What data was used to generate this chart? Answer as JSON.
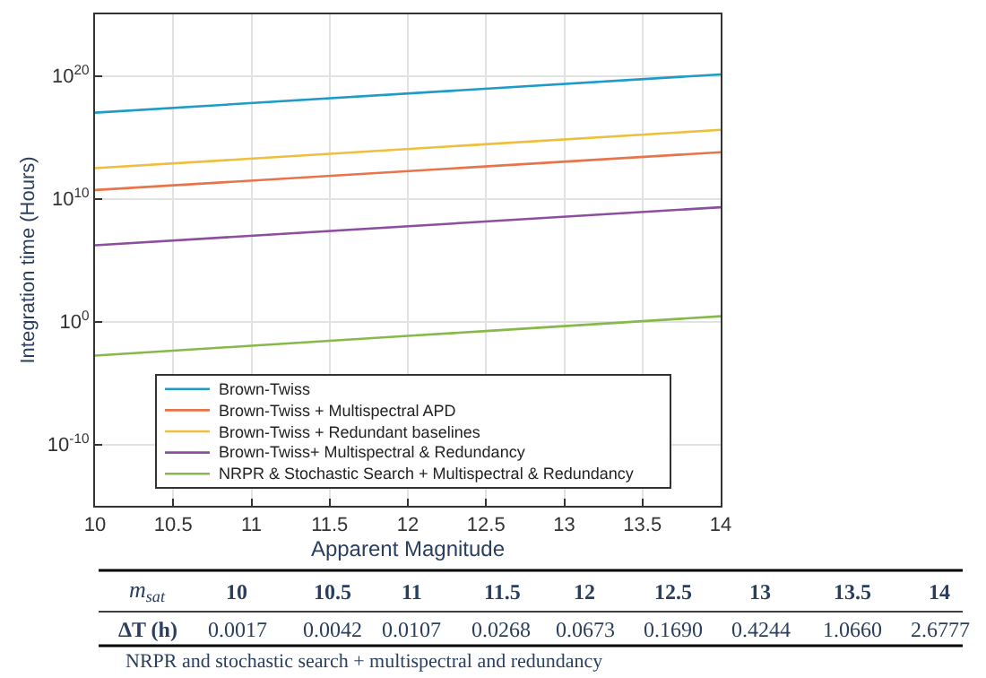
{
  "chart_data": {
    "type": "line",
    "xlabel": "Apparent Magnitude",
    "ylabel": "Integration time (Hours)",
    "log": "y",
    "grid": true,
    "legend": "bottom",
    "line_style": "solid",
    "marker": "none",
    "xlim": [
      10,
      14
    ],
    "xticks": [
      10,
      10.5,
      11,
      11.5,
      12,
      12.5,
      13,
      13.5,
      14
    ],
    "ylim": [
      1e-15,
      1e+25
    ],
    "yticks": [
      {
        "value": 1e-10,
        "label": "10$^{-10}$"
      },
      {
        "value": 1,
        "label": "10$^{0}$"
      },
      {
        "value": 10000000000.0,
        "label": "10$^{10}$"
      },
      {
        "value": 1e+20,
        "label": "10$^{20}$"
      }
    ],
    "series": [
      {
        "name": "Brown-Twiss",
        "color": "#1f9bc9",
        "x": [
          10,
          14
        ],
        "values": [
          1e+17,
          1.3e+20
        ]
      },
      {
        "name": "Brown-Twiss + Multispectral APD",
        "color": "#e8744a",
        "x": [
          10,
          14
        ],
        "values": [
          50000000000.0,
          60000000000000.0
        ]
      },
      {
        "name": "Brown-Twiss + Redundant baselines",
        "color": "#eebe3c",
        "x": [
          10,
          14
        ],
        "values": [
          3000000000000.0,
          4000000000000000.0
        ]
      },
      {
        "name": "Brown-Twiss+ Multispectral & Redundancy",
        "color": "#8e4ea0",
        "x": [
          10,
          14
        ],
        "values": [
          1600000.0,
          2000000000.0
        ]
      },
      {
        "name": "NRPR & Stochastic Search + Multispectral & Redundancy",
        "color": "#86b94a",
        "x": [
          10,
          10.5,
          11,
          11.5,
          12,
          12.5,
          13,
          13.5,
          14
        ],
        "values": [
          0.0017,
          0.0042,
          0.0107,
          0.0268,
          0.0673,
          0.169,
          0.4244,
          1.066,
          2.6777
        ]
      }
    ],
    "annotations": [
      "m$_{sat}$",
      "10",
      "10.5",
      "11",
      "11.5",
      "12",
      "12.5",
      "13",
      "13.5",
      "14",
      "ΔT (h)",
      "0.0017",
      "0.0042",
      "0.0107",
      "0.0268",
      "0.0673",
      "0.1690",
      "0.4244",
      "1.0660",
      "2.6777",
      "NRPR and stochastic search + multispectral and redundancy"
    ]
  }
}
